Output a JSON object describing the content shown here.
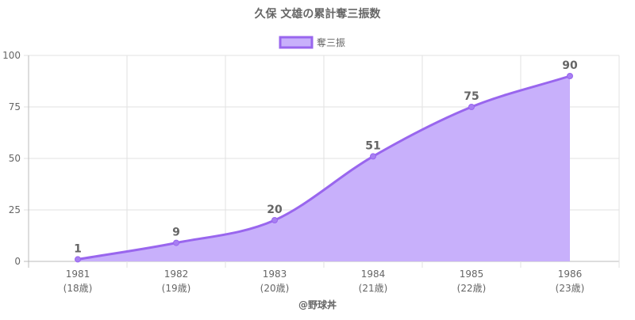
{
  "chart_data": {
    "type": "area",
    "title": "久保 文雄の累計奪三振数",
    "legend_position": "top-center",
    "categories": [
      "1981",
      "1982",
      "1983",
      "1984",
      "1985",
      "1986"
    ],
    "sub_labels": [
      "(18歳)",
      "(19歳)",
      "(20歳)",
      "(21歳)",
      "(22歳)",
      "(23歳)"
    ],
    "series": [
      {
        "name": "奪三振",
        "values": [
          1,
          9,
          20,
          51,
          75,
          90
        ]
      }
    ],
    "y_ticks": [
      "0",
      "25",
      "50",
      "75",
      "100"
    ],
    "ylim": [
      0,
      100
    ],
    "grid": true,
    "data_labels": true,
    "xlabel": "",
    "ylabel": ""
  },
  "credit": "@野球丼",
  "colors": {
    "line": "#9966ee",
    "fill": "#c8b0fb",
    "point": "#a77ff2",
    "grid": "#e2e2e2",
    "axis": "#bbbbbb",
    "text": "#666666"
  }
}
